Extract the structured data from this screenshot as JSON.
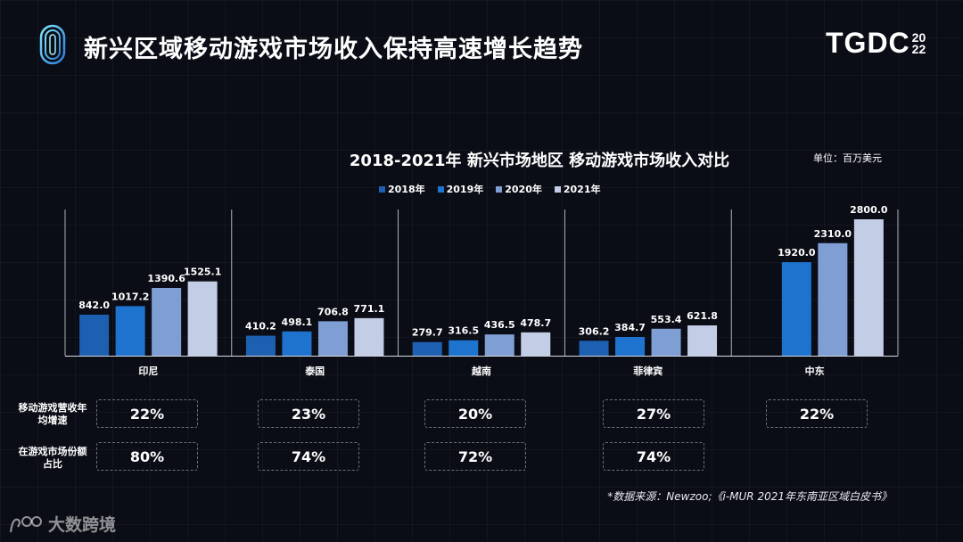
{
  "page_title": "新兴区域移动游戏市场收入保持高速增长趋势",
  "brand": {
    "main": "TGDC",
    "year_top": "20",
    "year_bottom": "22"
  },
  "unit_label": "单位：百万美元",
  "source_text": "*数据来源：Newzoo;《i-MUR 2021年东南亚区域白皮书》",
  "watermark_text": "大数跨境",
  "colors": {
    "s2018": "#1d5fb0",
    "s2019": "#1e73cf",
    "s2020": "#7f9fd4",
    "s2021": "#c3cde6",
    "background": "#0b0d16"
  },
  "stats": {
    "row_labels": [
      "移动游戏营收年均增速",
      "在游戏市场份额占比"
    ],
    "growth": [
      "22%",
      "23%",
      "20%",
      "27%",
      "22%"
    ],
    "share": [
      "80%",
      "74%",
      "72%",
      "74%",
      ""
    ]
  },
  "chart_data": {
    "type": "bar",
    "title": "2018-2021年 新兴市场地区 移动游戏市场收入对比",
    "xlabel": "",
    "ylabel": "",
    "categories": [
      "印尼",
      "泰国",
      "越南",
      "菲律宾",
      "中东"
    ],
    "series": [
      {
        "name": "2018年",
        "values": [
          842.0,
          410.2,
          279.7,
          306.2,
          null
        ]
      },
      {
        "name": "2019年",
        "values": [
          1017.2,
          498.1,
          316.5,
          384.7,
          1920.0
        ]
      },
      {
        "name": "2020年",
        "values": [
          1390.6,
          706.8,
          436.5,
          553.4,
          2310.0
        ]
      },
      {
        "name": "2021年",
        "values": [
          1525.1,
          771.1,
          478.7,
          621.8,
          2800.0
        ]
      }
    ],
    "ylim": [
      0,
      2800
    ],
    "grid": false,
    "legend_position": "top"
  }
}
